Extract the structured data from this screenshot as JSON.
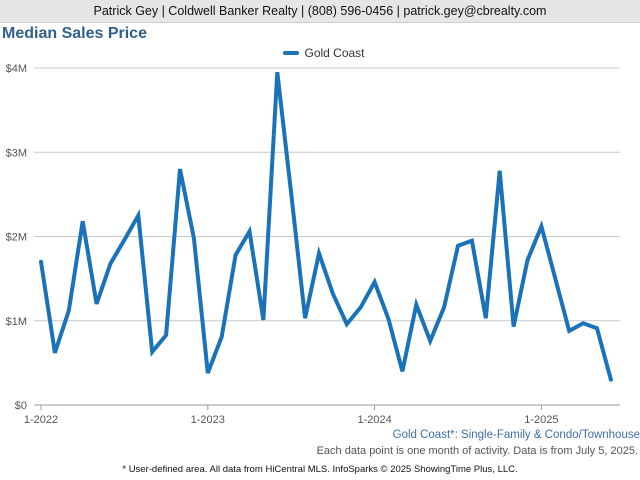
{
  "header": {
    "text": "Patrick Gey | Coldwell Banker Realty | (808) 596-0456 | patrick.gey@cbrealty.com"
  },
  "colors": {
    "series": "#1a73b8",
    "title": "#2f5f8a",
    "grid": "#c8c8c8"
  },
  "chart_data": {
    "type": "line",
    "title": "Median Sales Price",
    "xlabel": "",
    "ylabel": "",
    "grid": true,
    "legend_position": "top-center",
    "ylim": [
      0,
      4000000
    ],
    "y_ticks": [
      {
        "value": 0,
        "label": "$0"
      },
      {
        "value": 1000000,
        "label": "$1M"
      },
      {
        "value": 2000000,
        "label": "$2M"
      },
      {
        "value": 3000000,
        "label": "$3M"
      },
      {
        "value": 4000000,
        "label": "$4M"
      }
    ],
    "x_ticks": [
      {
        "date": "2022-01",
        "label": "1-2022"
      },
      {
        "date": "2023-01",
        "label": "1-2023"
      },
      {
        "date": "2024-01",
        "label": "1-2024"
      },
      {
        "date": "2025-01",
        "label": "1-2025"
      }
    ],
    "x": [
      "2022-01",
      "2022-02",
      "2022-03",
      "2022-04",
      "2022-05",
      "2022-06",
      "2022-07",
      "2022-08",
      "2022-09",
      "2022-10",
      "2022-11",
      "2022-12",
      "2023-01",
      "2023-02",
      "2023-03",
      "2023-04",
      "2023-05",
      "2023-06",
      "2023-07",
      "2023-08",
      "2023-09",
      "2023-10",
      "2023-11",
      "2023-12",
      "2024-01",
      "2024-02",
      "2024-03",
      "2024-04",
      "2024-05",
      "2024-06",
      "2024-07",
      "2024-08",
      "2024-09",
      "2024-10",
      "2024-11",
      "2024-12",
      "2025-01",
      "2025-02",
      "2025-03",
      "2025-04",
      "2025-05",
      "2025-06"
    ],
    "series": [
      {
        "name": "Gold Coast",
        "values": [
          1700000,
          620000,
          1120000,
          2180000,
          1200000,
          1680000,
          1960000,
          2250000,
          630000,
          830000,
          2800000,
          1980000,
          380000,
          810000,
          1780000,
          2060000,
          1010000,
          3950000,
          2510000,
          1030000,
          1800000,
          1320000,
          960000,
          1160000,
          1460000,
          1020000,
          400000,
          1190000,
          760000,
          1160000,
          1890000,
          1950000,
          1030000,
          2780000,
          930000,
          1720000,
          2120000,
          1500000,
          880000,
          970000,
          910000,
          300000
        ]
      }
    ]
  },
  "area_label": "Gold Coast*: Single-Family & Condo/Townhouse",
  "note": "Each data point is one month of activity. Data is from July 5, 2025.",
  "footer": "* User-defined area. All data from HiCentral MLS. InfoSparks © 2025 ShowingTime Plus, LLC."
}
